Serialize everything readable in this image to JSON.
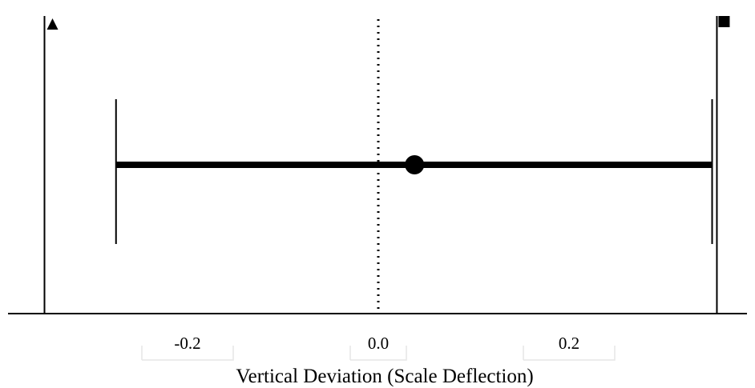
{
  "chart_data": {
    "type": "forest",
    "xlabel": "Vertical Deviation (Scale Deflection)",
    "xlim": [
      -0.36,
      0.36
    ],
    "ticks": [
      {
        "value": -0.2,
        "label": "-0.2"
      },
      {
        "value": 0.0,
        "label": "0.0"
      },
      {
        "value": 0.2,
        "label": "0.2"
      }
    ],
    "reference_line": {
      "value": 0.0,
      "style": "dotted"
    },
    "estimate": {
      "value": 0.038,
      "ci_low": -0.275,
      "ci_high": 0.35
    },
    "bounds": [
      {
        "value": -0.35,
        "marker": "triangle"
      },
      {
        "value": 0.355,
        "marker": "square"
      }
    ],
    "grid": false,
    "colors": {
      "ink": "#000000",
      "background": "#ffffff"
    }
  }
}
